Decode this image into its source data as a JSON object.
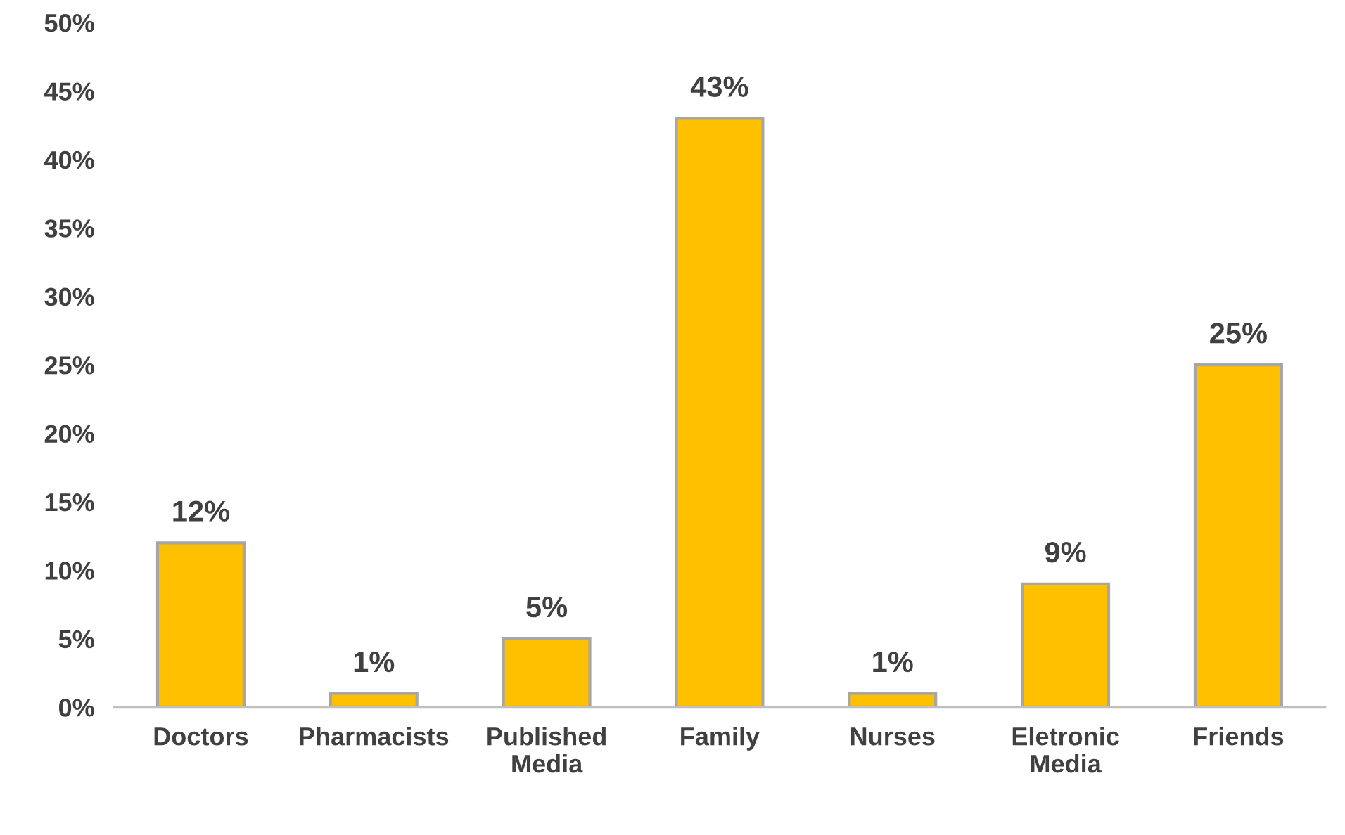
{
  "chart_data": {
    "type": "bar",
    "categories": [
      "Doctors",
      "Pharmacists",
      "Published\nMedia",
      "Family",
      "Nurses",
      "Eletronic\nMedia",
      "Friends"
    ],
    "values": [
      12,
      1,
      5,
      43,
      1,
      9,
      25
    ],
    "value_labels": [
      "12%",
      "1%",
      "5%",
      "43%",
      "1%",
      "9%",
      "25%"
    ],
    "color": "#ffc000",
    "ylim": [
      0,
      50
    ],
    "yticks": [
      {
        "value": 0,
        "label": "0%"
      },
      {
        "value": 5,
        "label": "5%"
      },
      {
        "value": 10,
        "label": "10%"
      },
      {
        "value": 15,
        "label": "15%"
      },
      {
        "value": 20,
        "label": "20%"
      },
      {
        "value": 25,
        "label": "25%"
      },
      {
        "value": 30,
        "label": "30%"
      },
      {
        "value": 35,
        "label": "35%"
      },
      {
        "value": 40,
        "label": "40%"
      },
      {
        "value": 45,
        "label": "45%"
      },
      {
        "value": 50,
        "label": "50%"
      }
    ],
    "grid": false,
    "legend": false
  }
}
